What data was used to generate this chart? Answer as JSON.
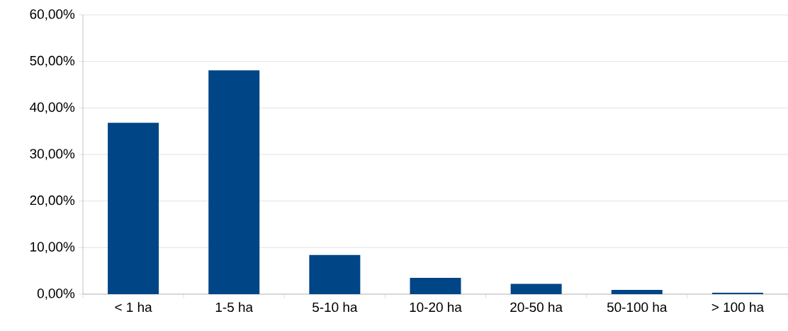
{
  "chart_data": {
    "type": "bar",
    "categories": [
      "< 1 ha",
      "1-5 ha",
      "5-10 ha",
      "10-20 ha",
      "20-50 ha",
      "50-100 ha",
      "> 100 ha"
    ],
    "values": [
      36.8,
      48.1,
      8.4,
      3.5,
      2.2,
      0.9,
      0.3
    ],
    "color": "#004586",
    "ylim": [
      0,
      60
    ],
    "yticks": [
      {
        "value": 0,
        "label": "0,00%"
      },
      {
        "value": 10,
        "label": "10,00%"
      },
      {
        "value": 20,
        "label": "20,00%"
      },
      {
        "value": 30,
        "label": "30,00%"
      },
      {
        "value": 40,
        "label": "40,00%"
      },
      {
        "value": 50,
        "label": "50,00%"
      },
      {
        "value": 60,
        "label": "60,00%"
      }
    ],
    "grid": "y"
  }
}
